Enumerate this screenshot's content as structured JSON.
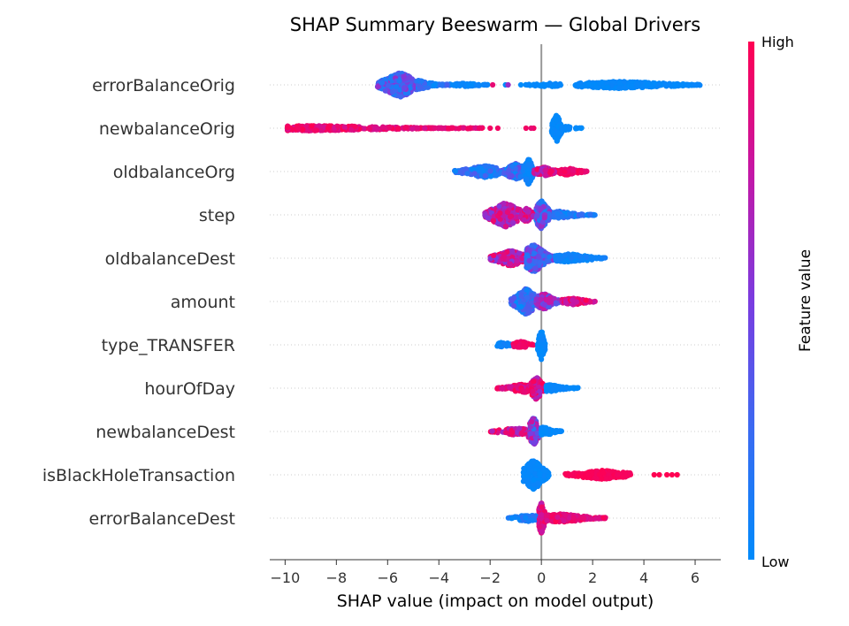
{
  "chart_data": {
    "type": "scatter",
    "subtype": "beeswarm",
    "title": "SHAP Summary Beeswarm — Global Drivers",
    "xlabel": "SHAP value (impact on model output)",
    "xlim": [
      -10.6,
      7.0
    ],
    "xticks": [
      -10,
      -8,
      -6,
      -4,
      -2,
      0,
      2,
      4,
      6
    ],
    "xtick_labels": [
      "−10",
      "−8",
      "−6",
      "−4",
      "−2",
      "0",
      "2",
      "4",
      "6"
    ],
    "zero_line": 0,
    "colorbar": {
      "title": "Feature value",
      "high_label": "High",
      "low_label": "Low",
      "high_color": "#ff0052",
      "low_color": "#008bfb"
    },
    "features": [
      {
        "name": "errorBalanceOrig",
        "segments": [
          {
            "x0": -6.4,
            "x1": -4.8,
            "peak": -5.5,
            "height": 28,
            "color": [
              0.1,
              0.6
            ]
          },
          {
            "x0": -4.8,
            "x1": -3.5,
            "peak": -4.8,
            "height": 10,
            "color": [
              0.0,
              0.3
            ]
          },
          {
            "x0": -3.5,
            "x1": -2.1,
            "peak": -3.0,
            "height": 4,
            "color": [
              0.0,
              0.1
            ]
          },
          {
            "x0": -0.7,
            "x1": 0.9,
            "peak": 0.3,
            "height": 4,
            "color": [
              0.0,
              0.05
            ]
          },
          {
            "x0": 1.3,
            "x1": 6.2,
            "peak": 3.0,
            "height": 8,
            "color": [
              0.0,
              0.05
            ]
          }
        ],
        "outliers": [
          {
            "x": -1.4,
            "color": 0.0
          },
          {
            "x": -0.8,
            "color": 0.0
          },
          {
            "x": -1.9,
            "color": 0.9
          },
          {
            "x": -1.3,
            "color": 0.6
          }
        ]
      },
      {
        "name": "newbalanceOrig",
        "segments": [
          {
            "x0": -9.9,
            "x1": -2.3,
            "peak": -9.0,
            "height": 6,
            "color": [
              0.8,
              1.0
            ]
          },
          {
            "x0": 0.4,
            "x1": 0.8,
            "peak": 0.6,
            "height": 32,
            "color": [
              0.0,
              0.05
            ]
          },
          {
            "x0": 0.8,
            "x1": 1.6,
            "peak": 0.9,
            "height": 5,
            "color": [
              0.0,
              0.05
            ]
          }
        ],
        "outliers": [
          {
            "x": -2.0,
            "color": 0.95
          },
          {
            "x": -1.7,
            "color": 0.95
          },
          {
            "x": -0.6,
            "color": 0.95
          },
          {
            "x": -0.3,
            "color": 0.95
          },
          {
            "x": -0.4,
            "color": 0.9
          }
        ]
      },
      {
        "name": "oldbalanceOrg",
        "segments": [
          {
            "x0": -3.4,
            "x1": -1.6,
            "peak": -2.2,
            "height": 14,
            "color": [
              0.0,
              0.35
            ]
          },
          {
            "x0": -1.6,
            "x1": -0.6,
            "peak": -1.0,
            "height": 18,
            "color": [
              0.0,
              0.5
            ]
          },
          {
            "x0": -0.7,
            "x1": -0.3,
            "peak": -0.5,
            "height": 30,
            "color": [
              0.0,
              0.1
            ]
          },
          {
            "x0": -0.3,
            "x1": 0.7,
            "peak": 0.1,
            "height": 10,
            "color": [
              0.6,
              1.0
            ]
          },
          {
            "x0": 0.7,
            "x1": 1.8,
            "peak": 1.0,
            "height": 8,
            "color": [
              0.85,
              1.0
            ]
          }
        ],
        "outliers": []
      },
      {
        "name": "step",
        "segments": [
          {
            "x0": -2.2,
            "x1": -0.8,
            "peak": -1.4,
            "height": 28,
            "color": [
              0.5,
              0.95
            ]
          },
          {
            "x0": -0.8,
            "x1": -0.2,
            "peak": -0.6,
            "height": 16,
            "color": [
              0.6,
              1.0
            ]
          },
          {
            "x0": -0.2,
            "x1": 0.5,
            "peak": 0.0,
            "height": 32,
            "color": [
              0.05,
              0.7
            ]
          },
          {
            "x0": 0.5,
            "x1": 2.1,
            "peak": 0.7,
            "height": 8,
            "color": [
              0.0,
              0.3
            ]
          }
        ],
        "outliers": []
      },
      {
        "name": "oldbalanceDest",
        "segments": [
          {
            "x0": -2.0,
            "x1": -0.6,
            "peak": -1.2,
            "height": 18,
            "color": [
              0.5,
              1.0
            ]
          },
          {
            "x0": -0.6,
            "x1": 0.5,
            "peak": -0.3,
            "height": 32,
            "color": [
              0.1,
              0.6
            ]
          },
          {
            "x0": 0.5,
            "x1": 2.5,
            "peak": 1.1,
            "height": 10,
            "color": [
              0.0,
              0.1
            ]
          }
        ],
        "outliers": []
      },
      {
        "name": "amount",
        "segments": [
          {
            "x0": -1.2,
            "x1": -0.2,
            "peak": -0.6,
            "height": 30,
            "color": [
              0.0,
              0.4
            ]
          },
          {
            "x0": -0.2,
            "x1": 0.8,
            "peak": 0.1,
            "height": 18,
            "color": [
              0.3,
              0.8
            ]
          },
          {
            "x0": 0.8,
            "x1": 2.1,
            "peak": 1.2,
            "height": 8,
            "color": [
              0.7,
              1.0
            ]
          }
        ],
        "outliers": []
      },
      {
        "name": "type_TRANSFER",
        "segments": [
          {
            "x0": -1.8,
            "x1": -1.1,
            "peak": -1.5,
            "height": 6,
            "color": [
              0.0,
              0.1
            ]
          },
          {
            "x0": -1.1,
            "x1": -0.3,
            "peak": -0.8,
            "height": 8,
            "color": [
              0.9,
              1.0
            ]
          },
          {
            "x0": -0.15,
            "x1": 0.15,
            "peak": 0.0,
            "height": 34,
            "color": [
              0.0,
              0.05
            ]
          }
        ],
        "outliers": []
      },
      {
        "name": "hourOfDay",
        "segments": [
          {
            "x0": -1.8,
            "x1": -0.4,
            "peak": -0.7,
            "height": 10,
            "color": [
              0.75,
              1.0
            ]
          },
          {
            "x0": -0.4,
            "x1": 0.2,
            "peak": -0.2,
            "height": 26,
            "color": [
              0.6,
              1.0
            ]
          },
          {
            "x0": 0.2,
            "x1": 1.5,
            "peak": 0.3,
            "height": 8,
            "color": [
              0.0,
              0.05
            ]
          }
        ],
        "outliers": []
      },
      {
        "name": "newbalanceDest",
        "segments": [
          {
            "x0": -2.0,
            "x1": -0.4,
            "peak": -1.0,
            "height": 8,
            "color": [
              0.6,
              1.0
            ]
          },
          {
            "x0": -0.5,
            "x1": 0.0,
            "peak": -0.3,
            "height": 32,
            "color": [
              0.1,
              0.9
            ]
          },
          {
            "x0": 0.0,
            "x1": 0.9,
            "peak": 0.1,
            "height": 10,
            "color": [
              0.0,
              0.05
            ]
          }
        ],
        "outliers": []
      },
      {
        "name": "isBlackHoleTransaction",
        "segments": [
          {
            "x0": -0.7,
            "x1": 0.3,
            "peak": -0.3,
            "height": 34,
            "color": [
              0.0,
              0.05
            ]
          },
          {
            "x0": 0.9,
            "x1": 3.5,
            "peak": 2.4,
            "height": 10,
            "color": [
              0.95,
              1.0
            ]
          }
        ],
        "outliers": [
          {
            "x": 4.4,
            "color": 1.0
          },
          {
            "x": 4.6,
            "color": 1.0
          },
          {
            "x": 4.9,
            "color": 1.0
          },
          {
            "x": 5.1,
            "color": 1.0
          },
          {
            "x": 5.3,
            "color": 1.0
          }
        ]
      },
      {
        "name": "errorBalanceDest",
        "segments": [
          {
            "x0": -1.3,
            "x1": -0.1,
            "peak": -0.5,
            "height": 8,
            "color": [
              0.0,
              0.2
            ]
          },
          {
            "x0": -0.1,
            "x1": 0.2,
            "peak": 0.0,
            "height": 36,
            "color": [
              0.7,
              1.0
            ]
          },
          {
            "x0": 0.2,
            "x1": 2.5,
            "peak": 0.7,
            "height": 10,
            "color": [
              0.8,
              1.0
            ]
          }
        ],
        "outliers": []
      }
    ]
  }
}
